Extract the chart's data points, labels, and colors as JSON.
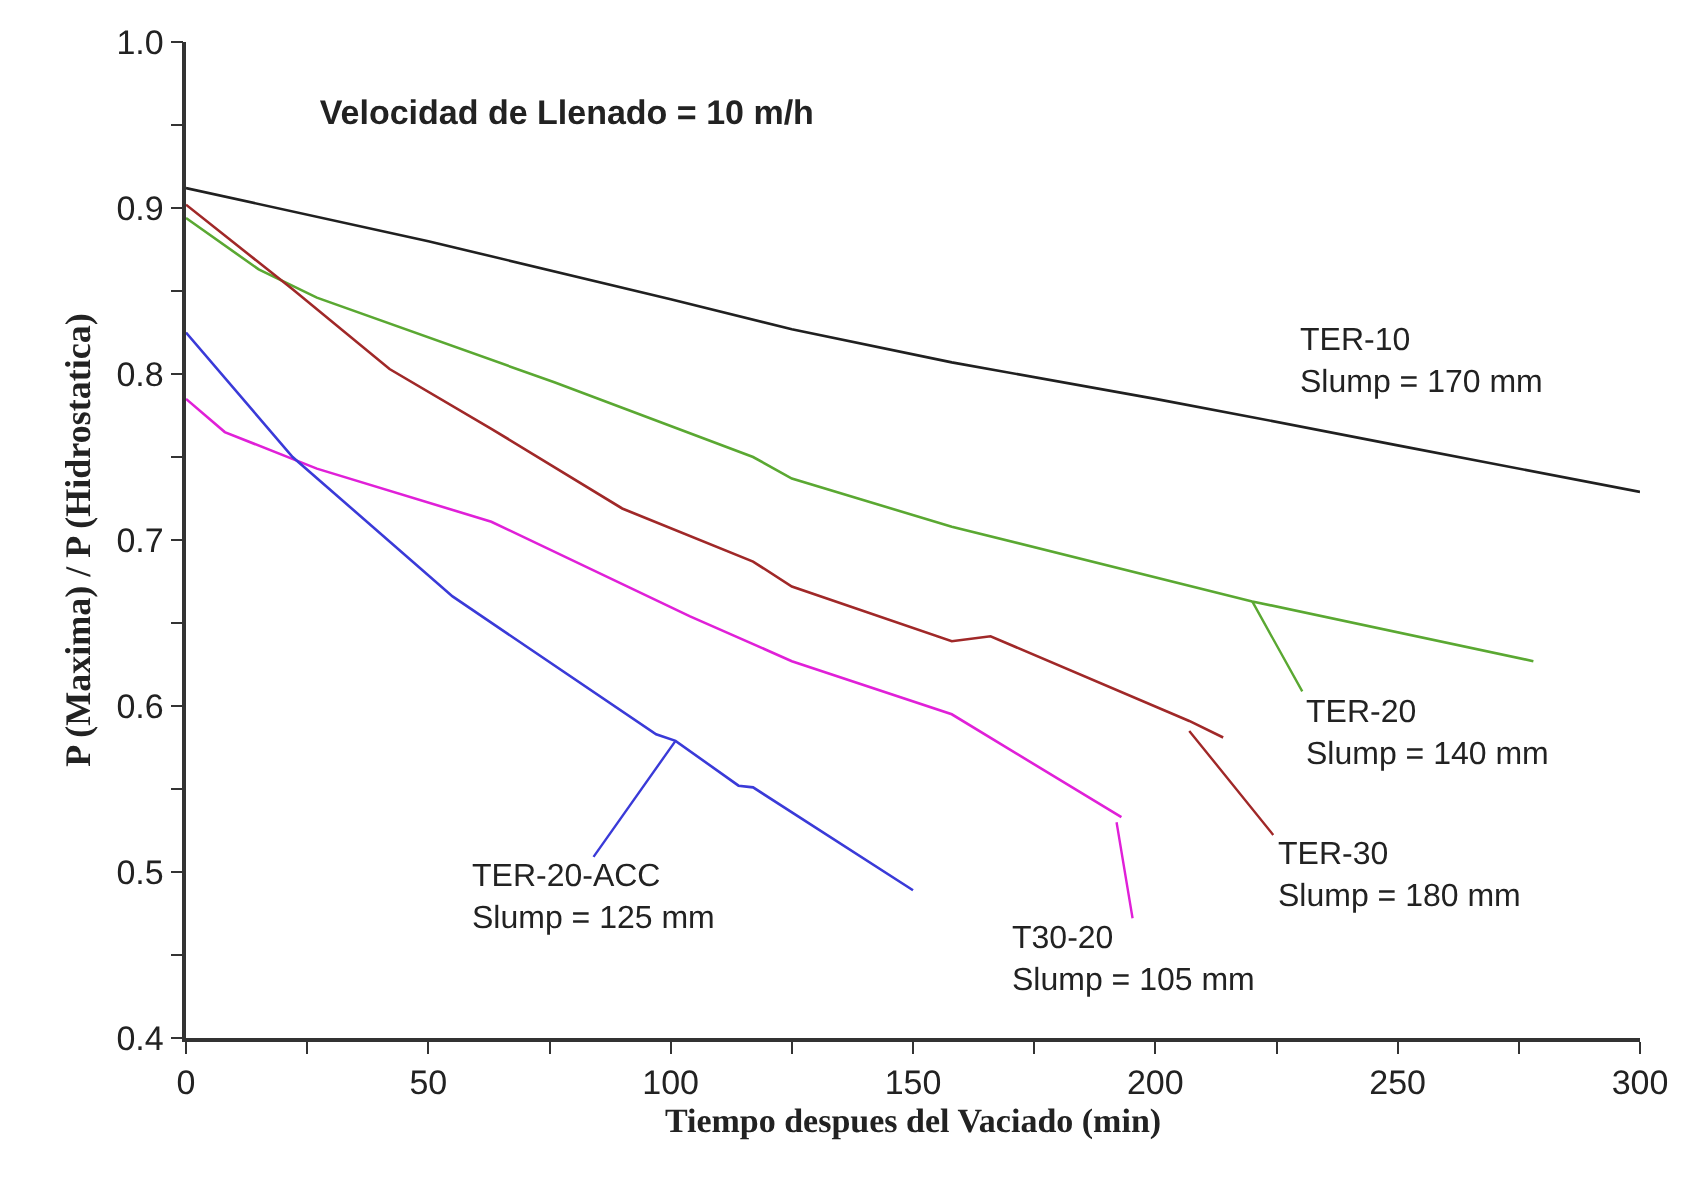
{
  "chart_data": {
    "type": "line",
    "title": "Velocidad de Llenado = 10 m/h",
    "xlabel": "Tiempo despues del Vaciado (min)",
    "ylabel": "P (Maxima) / P (Hidrostatica)",
    "xlim": [
      0,
      300
    ],
    "ylim": [
      0.4,
      1.0
    ],
    "xticks": [
      0,
      {
        "value": 25,
        "label": null
      },
      50,
      {
        "value": 75,
        "label": null
      },
      100,
      {
        "value": 125,
        "label": null
      },
      150,
      {
        "value": 175,
        "label": null
      },
      200,
      {
        "value": 225,
        "label": null
      },
      250,
      {
        "value": 275,
        "label": null
      },
      300
    ],
    "yticks": [
      0.4,
      {
        "value": 0.45,
        "label": null
      },
      0.5,
      {
        "value": 0.55,
        "label": null
      },
      0.6,
      {
        "value": 0.65,
        "label": null
      },
      0.7,
      {
        "value": 0.75,
        "label": null
      },
      0.8,
      {
        "value": 0.85,
        "label": null
      },
      0.9,
      {
        "value": 0.95,
        "label": null
      },
      {
        "value": 1,
        "label": "1.0"
      }
    ],
    "grid": false,
    "legend": false,
    "marker": "none",
    "line_style": "solid",
    "series": [
      {
        "color": "#202020",
        "x": [
          0,
          50,
          100,
          125,
          158,
          200,
          220,
          250,
          300
        ],
        "values": [
          0.912,
          0.88,
          0.845,
          0.827,
          0.807,
          0.785,
          0.774,
          0.757,
          0.729
        ]
      },
      {
        "color": "#5aa832",
        "x": [
          0,
          15,
          27,
          76,
          117,
          125,
          158,
          220,
          278
        ],
        "values": [
          0.894,
          0.863,
          0.846,
          0.795,
          0.75,
          0.737,
          0.708,
          0.663,
          0.627
        ]
      },
      {
        "color": "#a02828",
        "x": [
          0,
          22,
          42,
          63,
          90,
          117,
          125,
          158,
          166,
          207,
          214
        ],
        "values": [
          0.902,
          0.851,
          0.803,
          0.767,
          0.719,
          0.687,
          0.672,
          0.639,
          0.642,
          0.591,
          0.581
        ]
      },
      {
        "color": "#e020d8",
        "x": [
          0,
          8,
          27,
          63,
          104,
          125,
          158,
          193
        ],
        "values": [
          0.785,
          0.765,
          0.743,
          0.711,
          0.654,
          0.627,
          0.595,
          0.533
        ]
      },
      {
        "color": "#3a3ad8",
        "x": [
          0,
          22,
          55,
          97,
          101,
          114,
          117,
          150
        ],
        "values": [
          0.825,
          0.75,
          0.666,
          0.583,
          0.579,
          0.552,
          0.551,
          0.489
        ]
      }
    ],
    "annotations": [
      "TER-10\nSlump = 170 mm",
      {
        "text": "TER-20\nSlump = 140 mm",
        "x": 220,
        "y": 0.663
      },
      {
        "text": "TER-30\nSlump = 180 mm",
        "x": 207,
        "y": 0.585
      },
      {
        "text": "T30-20\nSlump = 105 mm",
        "x": 192,
        "y": 0.53
      },
      {
        "text": "TER-20-ACC\nSlump = 125 mm",
        "x": 101,
        "y": 0.579
      }
    ]
  }
}
